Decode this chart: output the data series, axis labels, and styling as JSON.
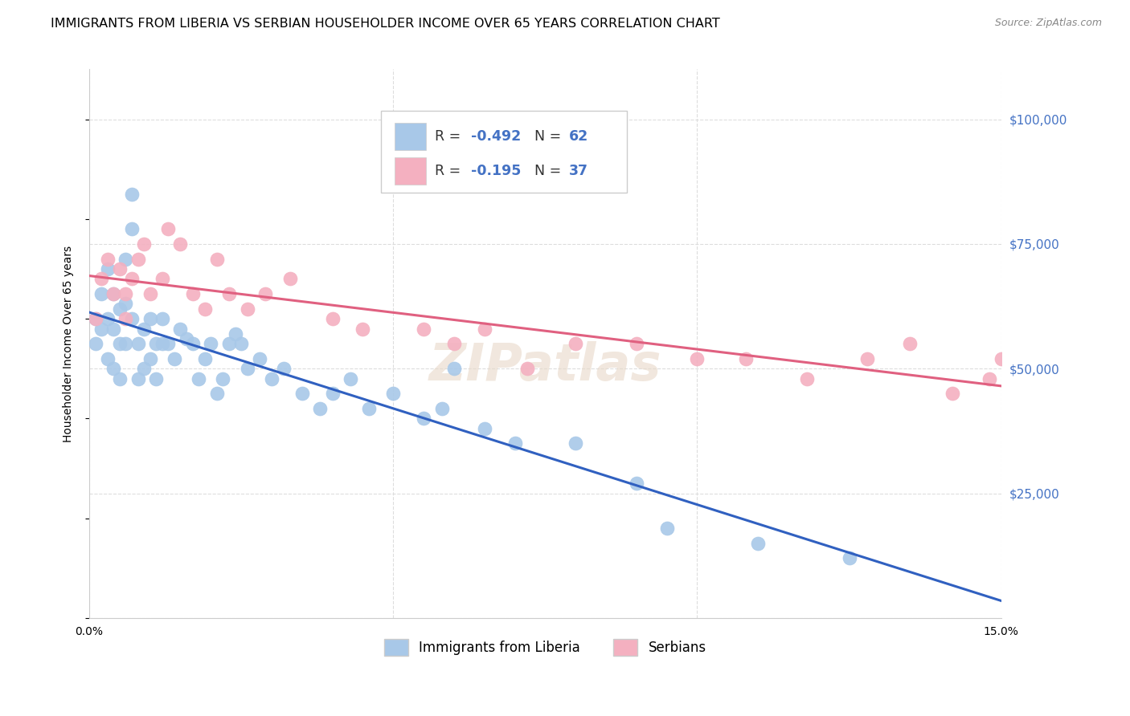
{
  "title": "IMMIGRANTS FROM LIBERIA VS SERBIAN HOUSEHOLDER INCOME OVER 65 YEARS CORRELATION CHART",
  "source": "Source: ZipAtlas.com",
  "ylabel": "Householder Income Over 65 years",
  "xlim": [
    0.0,
    0.15
  ],
  "ylim": [
    0,
    110000
  ],
  "yticks_right": [
    0,
    25000,
    50000,
    75000,
    100000
  ],
  "ytick_labels_right": [
    "",
    "$25,000",
    "$50,000",
    "$75,000",
    "$100,000"
  ],
  "liberia_color": "#a8c8e8",
  "serbian_color": "#f4b0c0",
  "liberia_line_color": "#3060c0",
  "serbian_line_color": "#e06080",
  "background_color": "#ffffff",
  "grid_color": "#dddddd",
  "watermark": "ZIPatlas",
  "liberia_x": [
    0.001,
    0.001,
    0.002,
    0.002,
    0.003,
    0.003,
    0.003,
    0.004,
    0.004,
    0.004,
    0.005,
    0.005,
    0.005,
    0.006,
    0.006,
    0.006,
    0.007,
    0.007,
    0.007,
    0.008,
    0.008,
    0.009,
    0.009,
    0.01,
    0.01,
    0.011,
    0.011,
    0.012,
    0.012,
    0.013,
    0.014,
    0.015,
    0.016,
    0.017,
    0.018,
    0.019,
    0.02,
    0.021,
    0.022,
    0.023,
    0.024,
    0.025,
    0.026,
    0.028,
    0.03,
    0.032,
    0.035,
    0.038,
    0.04,
    0.043,
    0.046,
    0.05,
    0.055,
    0.058,
    0.06,
    0.065,
    0.07,
    0.08,
    0.09,
    0.095,
    0.11,
    0.125
  ],
  "liberia_y": [
    60000,
    55000,
    65000,
    58000,
    70000,
    60000,
    52000,
    65000,
    58000,
    50000,
    62000,
    55000,
    48000,
    72000,
    63000,
    55000,
    85000,
    78000,
    60000,
    55000,
    48000,
    58000,
    50000,
    60000,
    52000,
    55000,
    48000,
    60000,
    55000,
    55000,
    52000,
    58000,
    56000,
    55000,
    48000,
    52000,
    55000,
    45000,
    48000,
    55000,
    57000,
    55000,
    50000,
    52000,
    48000,
    50000,
    45000,
    42000,
    45000,
    48000,
    42000,
    45000,
    40000,
    42000,
    50000,
    38000,
    35000,
    35000,
    27000,
    18000,
    15000,
    12000
  ],
  "serbian_x": [
    0.001,
    0.002,
    0.003,
    0.004,
    0.005,
    0.006,
    0.006,
    0.007,
    0.008,
    0.009,
    0.01,
    0.012,
    0.013,
    0.015,
    0.017,
    0.019,
    0.021,
    0.023,
    0.026,
    0.029,
    0.033,
    0.04,
    0.045,
    0.055,
    0.06,
    0.065,
    0.072,
    0.08,
    0.09,
    0.1,
    0.108,
    0.118,
    0.128,
    0.135,
    0.142,
    0.148,
    0.15
  ],
  "serbian_y": [
    60000,
    68000,
    72000,
    65000,
    70000,
    65000,
    60000,
    68000,
    72000,
    75000,
    65000,
    68000,
    78000,
    75000,
    65000,
    62000,
    72000,
    65000,
    62000,
    65000,
    68000,
    60000,
    58000,
    58000,
    55000,
    58000,
    50000,
    55000,
    55000,
    52000,
    52000,
    48000,
    52000,
    55000,
    45000,
    48000,
    52000
  ],
  "title_fontsize": 11.5,
  "axis_label_fontsize": 10,
  "tick_fontsize": 10,
  "source_fontsize": 9,
  "legend_R1": "R = ",
  "legend_V1": "-0.492",
  "legend_N1": "N = ",
  "legend_C1": "62",
  "legend_R2": "R = ",
  "legend_V2": "-0.195",
  "legend_N2": "N = ",
  "legend_C2": "37",
  "bottom_label1": "Immigrants from Liberia",
  "bottom_label2": "Serbians"
}
